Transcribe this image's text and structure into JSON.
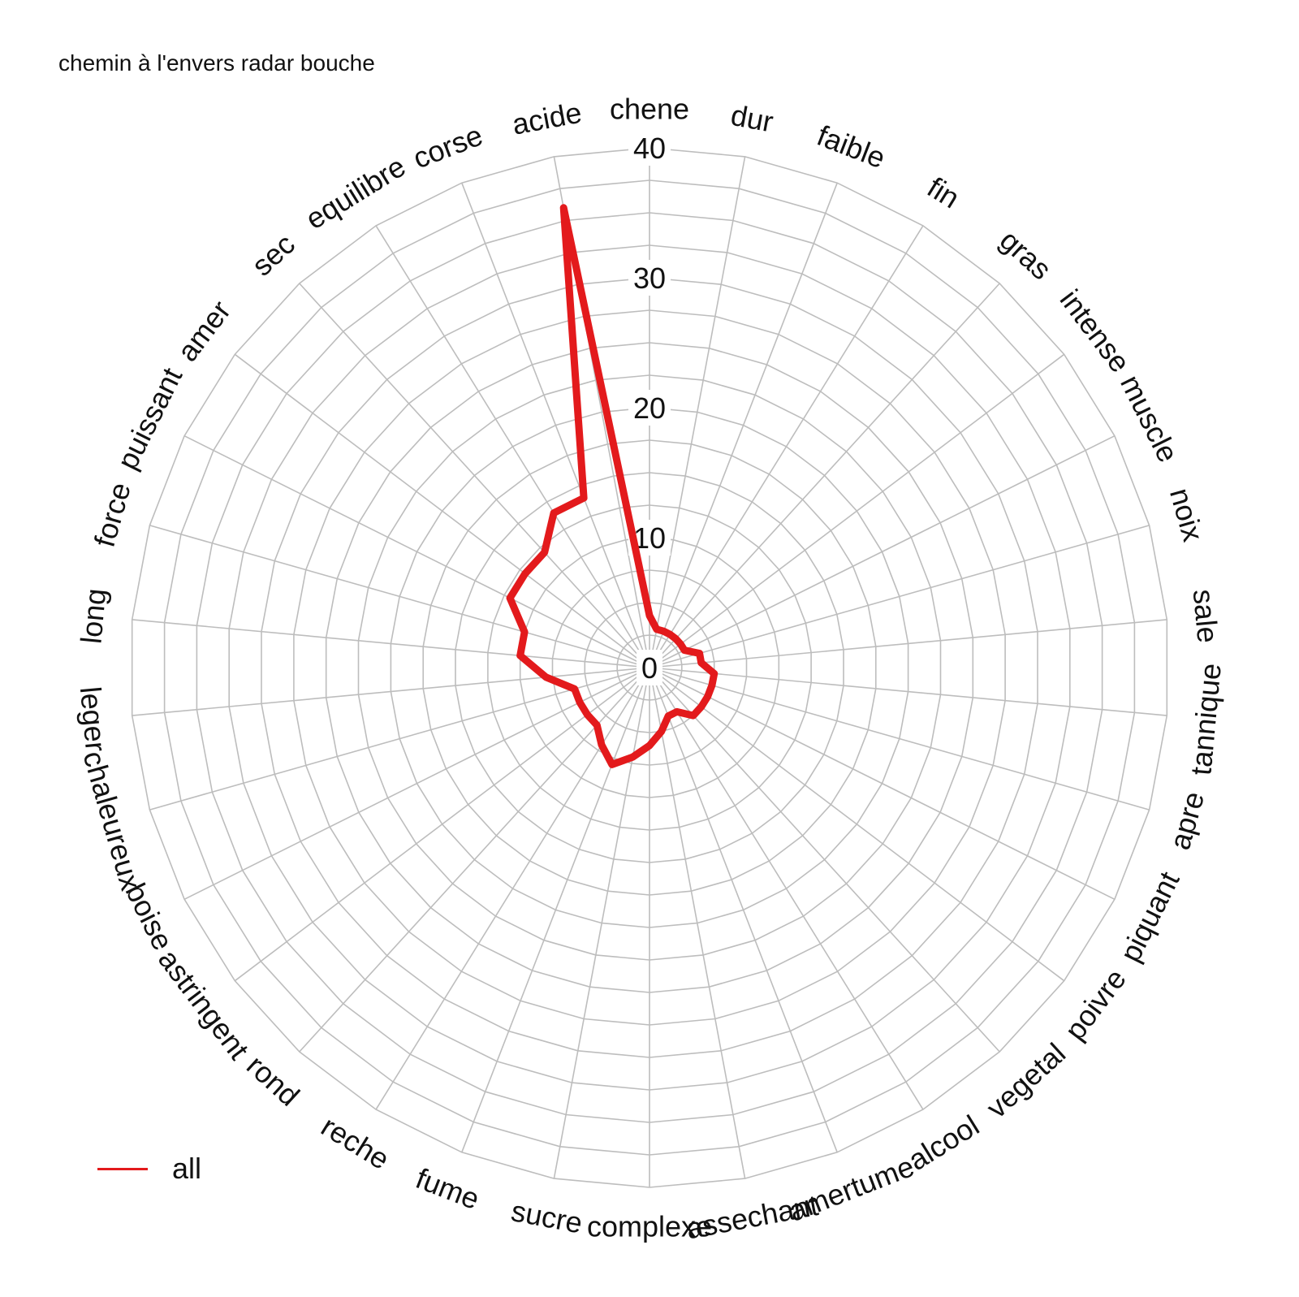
{
  "title": "chemin à l'envers radar bouche",
  "chart_data": {
    "type": "radar",
    "title": "chemin à l'envers radar bouche",
    "categories": [
      "chene",
      "dur",
      "faible",
      "fin",
      "gras",
      "intense",
      "muscle",
      "noix",
      "sale",
      "tannique",
      "apre",
      "piquant",
      "poivre",
      "vegetal",
      "alcool",
      "amertume",
      "assechant",
      "complexe",
      "sucre",
      "fume",
      "reche",
      "rond",
      "astringent",
      "boise",
      "chaleureux",
      "leger",
      "long",
      "force",
      "puissant",
      "amer",
      "sec",
      "equilibre",
      "corse",
      "acide"
    ],
    "ylim": [
      0,
      40
    ],
    "radial_ticks": [
      0,
      10,
      20,
      30,
      40
    ],
    "grid": true,
    "legend_position": "bottom-left",
    "series": [
      {
        "name": "all",
        "color": "#e31a1c",
        "values": [
          4,
          3,
          3,
          3,
          3,
          3,
          3,
          4,
          4,
          5,
          5,
          5,
          5,
          5,
          4,
          4,
          5,
          6,
          7,
          8,
          7,
          6,
          6,
          6,
          6,
          8,
          10,
          10,
          12,
          12,
          12,
          14,
          14,
          36
        ]
      }
    ]
  }
}
